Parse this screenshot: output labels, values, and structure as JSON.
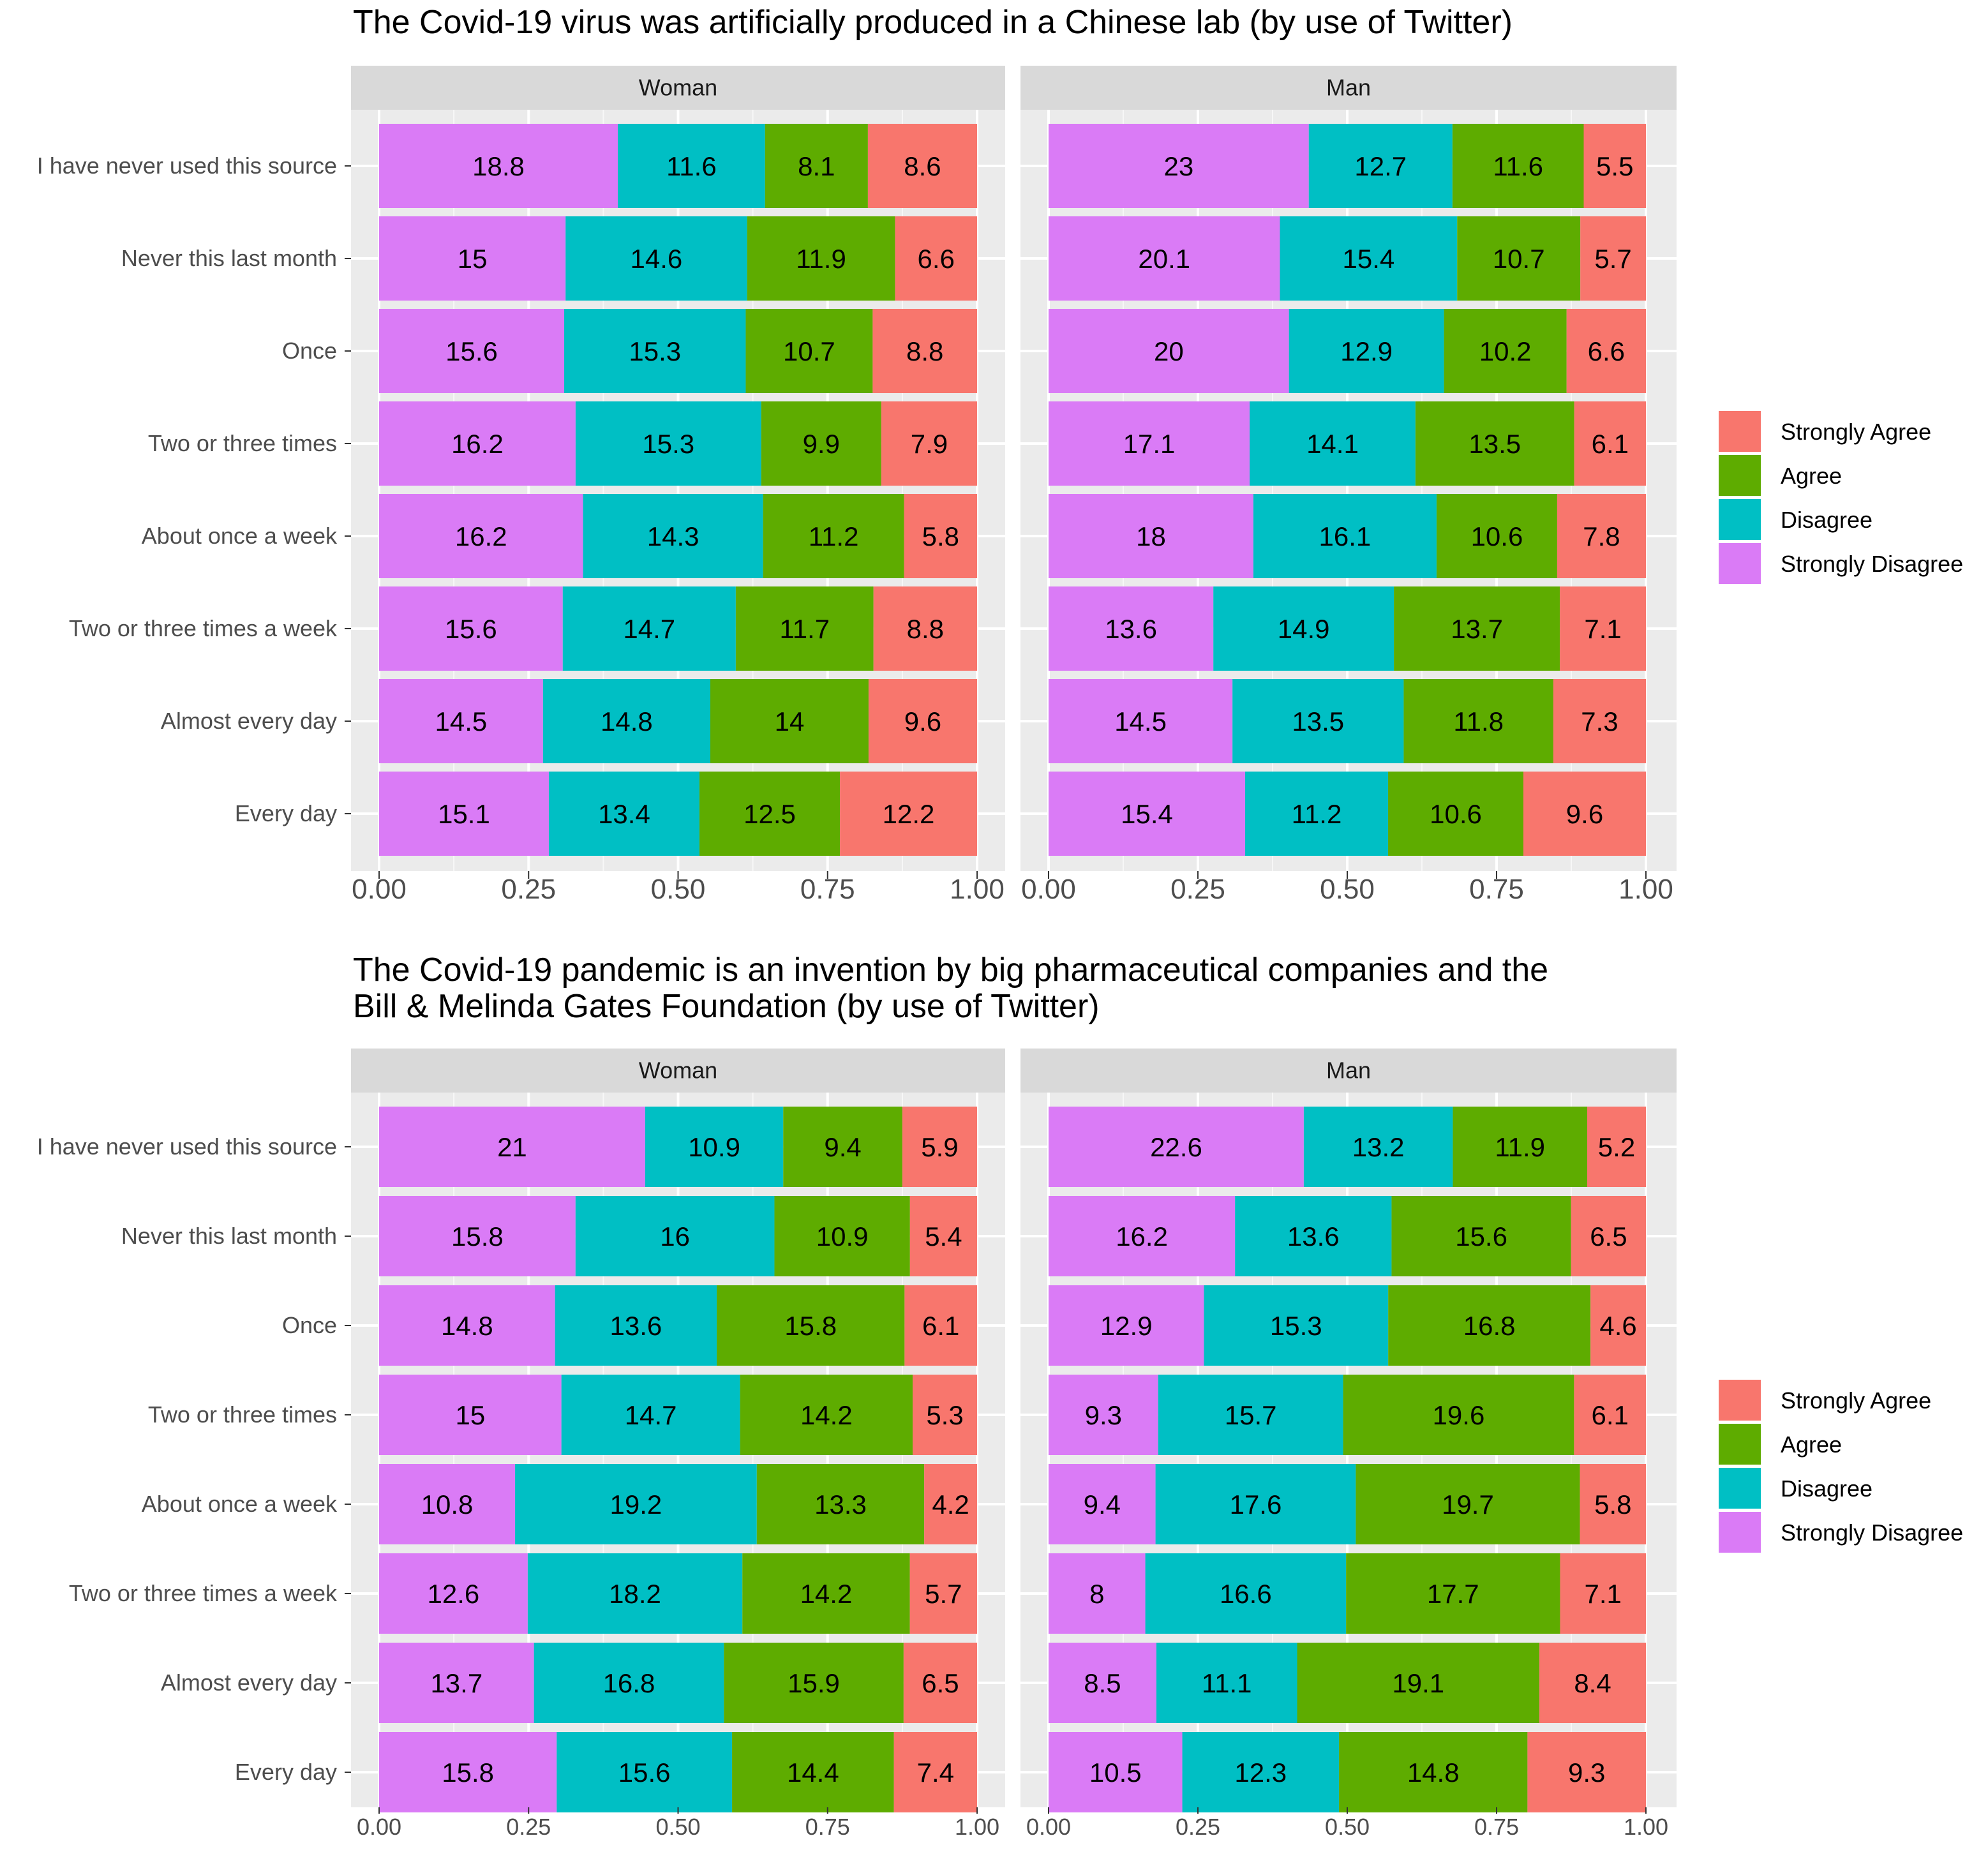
{
  "colors": {
    "Strongly Agree": "#F8766D",
    "Agree": "#5EAC00",
    "Disagree": "#00BFC4",
    "Strongly Disagree": "#DA7BF6"
  },
  "chart_data": [
    {
      "type": "bar",
      "orientation": "horizontal",
      "stacking": "fill",
      "title": "The Covid-19 virus was artificially produced in a Chinese lab (by use of Twitter)",
      "facets": [
        "Woman",
        "Man"
      ],
      "categories": [
        "I have never used this source",
        "Never this last month",
        "Once",
        "Two or three times",
        "About once a week",
        "Two or three times a week",
        "Almost every day",
        "Every day"
      ],
      "xticks": [
        "0.00",
        "0.25",
        "0.50",
        "0.75",
        "1.00"
      ],
      "xlim": [
        0,
        1
      ],
      "legend": {
        "position": "right",
        "entries": [
          "Strongly Agree",
          "Agree",
          "Disagree",
          "Strongly Disagree"
        ]
      },
      "grid": true,
      "series": {
        "Woman": [
          {
            "name": "Strongly Disagree",
            "values": [
              18.8,
              15,
              15.6,
              16.2,
              16.2,
              15.6,
              14.5,
              15.1
            ]
          },
          {
            "name": "Disagree",
            "values": [
              11.6,
              14.6,
              15.3,
              15.3,
              14.3,
              14.7,
              14.8,
              13.4
            ]
          },
          {
            "name": "Agree",
            "values": [
              8.1,
              11.9,
              10.7,
              9.9,
              11.2,
              11.7,
              14,
              12.5
            ]
          },
          {
            "name": "Strongly Agree",
            "values": [
              8.6,
              6.6,
              8.8,
              7.9,
              5.8,
              8.8,
              9.6,
              12.2
            ]
          }
        ],
        "Man": [
          {
            "name": "Strongly Disagree",
            "values": [
              23,
              20.1,
              20,
              17.1,
              18,
              13.6,
              14.5,
              15.4
            ]
          },
          {
            "name": "Disagree",
            "values": [
              12.7,
              15.4,
              12.9,
              14.1,
              16.1,
              14.9,
              13.5,
              11.2
            ]
          },
          {
            "name": "Agree",
            "values": [
              11.6,
              10.7,
              10.2,
              13.5,
              10.6,
              13.7,
              11.8,
              10.6
            ]
          },
          {
            "name": "Strongly Agree",
            "values": [
              5.5,
              5.7,
              6.6,
              6.1,
              7.8,
              7.1,
              7.3,
              9.6
            ]
          }
        ]
      }
    },
    {
      "type": "bar",
      "orientation": "horizontal",
      "stacking": "fill",
      "title": [
        "The Covid-19 pandemic is an invention by big pharmaceutical companies and the",
        " Bill & Melinda Gates Foundation (by use of Twitter)"
      ],
      "facets": [
        "Woman",
        "Man"
      ],
      "categories": [
        "I have never used this source",
        "Never this last month",
        "Once",
        "Two or three times",
        "About once a week",
        "Two or three times a week",
        "Almost every day",
        "Every day"
      ],
      "xticks": [
        "0.00",
        "0.25",
        "0.50",
        "0.75",
        "1.00"
      ],
      "xlim": [
        0,
        1
      ],
      "legend": {
        "position": "right",
        "entries": [
          "Strongly Agree",
          "Agree",
          "Disagree",
          "Strongly Disagree"
        ]
      },
      "grid": true,
      "series": {
        "Woman": [
          {
            "name": "Strongly Disagree",
            "values": [
              21,
              15.8,
              14.8,
              15,
              10.8,
              12.6,
              13.7,
              15.8
            ]
          },
          {
            "name": "Disagree",
            "values": [
              10.9,
              16,
              13.6,
              14.7,
              19.2,
              18.2,
              16.8,
              15.6
            ]
          },
          {
            "name": "Agree",
            "values": [
              9.4,
              10.9,
              15.8,
              14.2,
              13.3,
              14.2,
              15.9,
              14.4
            ]
          },
          {
            "name": "Strongly Agree",
            "values": [
              5.9,
              5.4,
              6.1,
              5.3,
              4.2,
              5.7,
              6.5,
              7.4
            ]
          }
        ],
        "Man": [
          {
            "name": "Strongly Disagree",
            "values": [
              22.6,
              16.2,
              12.9,
              9.3,
              9.4,
              8,
              8.5,
              10.5
            ]
          },
          {
            "name": "Disagree",
            "values": [
              13.2,
              13.6,
              15.3,
              15.7,
              17.6,
              16.6,
              11.1,
              12.3
            ]
          },
          {
            "name": "Agree",
            "values": [
              11.9,
              15.6,
              16.8,
              19.6,
              19.7,
              17.7,
              19.1,
              14.8
            ]
          },
          {
            "name": "Strongly Agree",
            "values": [
              5.2,
              6.5,
              4.6,
              6.1,
              5.8,
              7.1,
              8.4,
              9.3
            ]
          }
        ]
      }
    }
  ]
}
